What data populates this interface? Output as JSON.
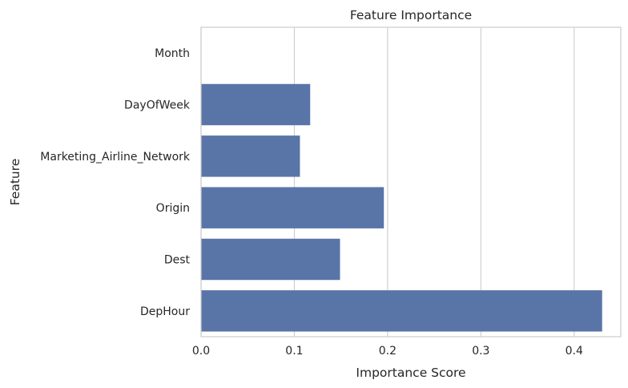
{
  "chart_data": {
    "type": "bar",
    "orientation": "horizontal",
    "title": "Feature Importance",
    "xlabel": "Importance Score",
    "ylabel": "Feature",
    "categories": [
      "Month",
      "DayOfWeek",
      "Marketing_Airline_Network",
      "Origin",
      "Dest",
      "DepHour"
    ],
    "values": [
      0.0,
      0.117,
      0.106,
      0.196,
      0.149,
      0.43
    ],
    "xlim": [
      0,
      0.45
    ],
    "xticks": [
      0.0,
      0.1,
      0.2,
      0.3,
      0.4
    ],
    "xtick_labels": [
      "0.0",
      "0.1",
      "0.2",
      "0.3",
      "0.4"
    ],
    "grid": "vertical",
    "bar_color": "#5975a8",
    "grid_color": "#cccccc",
    "spine_color": "#cccccc"
  }
}
